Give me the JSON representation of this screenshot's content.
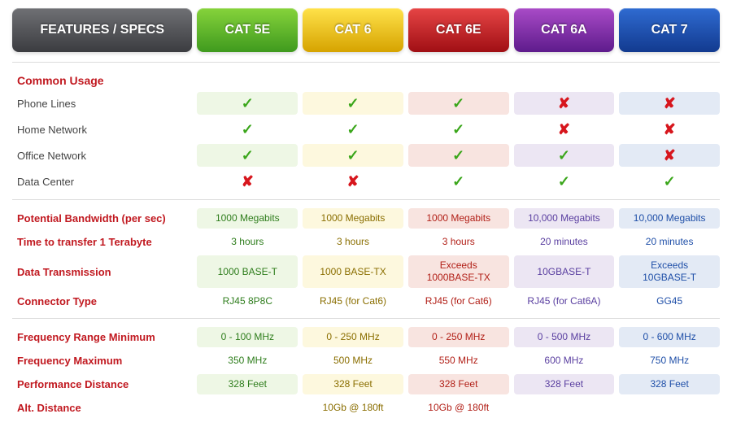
{
  "header": {
    "features_label": "FEATURES / SPECS",
    "columns": [
      {
        "id": "cat5e",
        "label": "CAT 5E",
        "bg_top": "#86d33b",
        "bg_bot": "#3f9a1e",
        "tint": "#eef7e5",
        "text": "#2e7d1c"
      },
      {
        "id": "cat6",
        "label": "CAT 6",
        "bg_top": "#ffe24a",
        "bg_bot": "#d6a300",
        "tint": "#fdf8de",
        "text": "#8a6e00"
      },
      {
        "id": "cat6e",
        "label": "CAT 6E",
        "bg_top": "#e64545",
        "bg_bot": "#a00f14",
        "tint": "#f8e4e0",
        "text": "#b22018"
      },
      {
        "id": "cat6a",
        "label": "CAT 6A",
        "bg_top": "#a94bc7",
        "bg_bot": "#5e1b8c",
        "tint": "#ece6f3",
        "text": "#5a3fa0"
      },
      {
        "id": "cat7",
        "label": "CAT 7",
        "bg_top": "#2f6bd1",
        "bg_bot": "#123a8f",
        "tint": "#e3eaf5",
        "text": "#1f4fa8"
      }
    ],
    "features_bg_top": "#6f7074",
    "features_bg_bot": "#3b3c40"
  },
  "sections": [
    {
      "title": "Common Usage",
      "type": "check",
      "rows": [
        {
          "label": "Phone Lines",
          "values": [
            "yes",
            "yes",
            "yes",
            "no",
            "no"
          ]
        },
        {
          "label": "Home Network",
          "values": [
            "yes",
            "yes",
            "yes",
            "no",
            "no"
          ]
        },
        {
          "label": "Office Network",
          "values": [
            "yes",
            "yes",
            "yes",
            "yes",
            "no"
          ]
        },
        {
          "label": "Data Center",
          "values": [
            "no",
            "no",
            "yes",
            "yes",
            "yes"
          ]
        }
      ]
    },
    {
      "title": null,
      "type": "text",
      "rows": [
        {
          "label": "Potential Bandwidth (per sec)",
          "red": true,
          "values": [
            "1000 Megabits",
            "1000 Megabits",
            "1000 Megabits",
            "10,000 Megabits",
            "10,000 Megabits"
          ]
        },
        {
          "label": "Time to transfer 1 Terabyte",
          "red": true,
          "values": [
            "3 hours",
            "3 hours",
            "3 hours",
            "20 minutes",
            "20 minutes"
          ]
        },
        {
          "label": "Data Transmission",
          "red": true,
          "values": [
            "1000 BASE-T",
            "1000 BASE-TX",
            "Exceeds\n1000BASE-TX",
            "10GBASE-T",
            "Exceeds\n10GBASE-T"
          ]
        },
        {
          "label": "Connector Type",
          "red": true,
          "values": [
            "RJ45 8P8C",
            "RJ45 (for Cat6)",
            "RJ45 (for Cat6)",
            "RJ45 (for Cat6A)",
            "GG45"
          ]
        }
      ]
    },
    {
      "title": null,
      "type": "text",
      "rows": [
        {
          "label": "Frequency Range Minimum",
          "red": true,
          "values": [
            "0 - 100 MHz",
            "0 - 250 MHz",
            "0 - 250 MHz",
            "0 - 500 MHz",
            "0 - 600 MHz"
          ]
        },
        {
          "label": "Frequency Maximum",
          "red": true,
          "values": [
            "350 MHz",
            "500 MHz",
            "550 MHz",
            "600 MHz",
            "750 MHz"
          ]
        },
        {
          "label": "Performance Distance",
          "red": true,
          "values": [
            "328 Feet",
            "328 Feet",
            "328 Feet",
            "328 Feet",
            "328 Feet"
          ]
        },
        {
          "label": "Alt. Distance",
          "red": true,
          "values": [
            "",
            "10Gb @ 180ft",
            "10Gb @ 180ft",
            "",
            ""
          ]
        }
      ]
    }
  ],
  "tint_rows": {
    "0": [
      0,
      2
    ],
    "1": [
      0,
      2
    ],
    "2": [
      0,
      2
    ]
  }
}
